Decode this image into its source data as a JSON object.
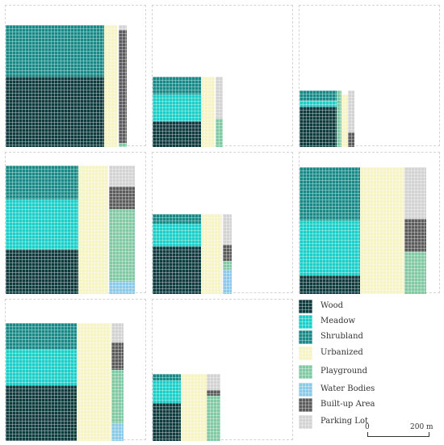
{
  "legend": {
    "items": [
      {
        "label": "Wood",
        "color": "#0e3b3e"
      },
      {
        "label": "Meadow",
        "color": "#19cfc7"
      },
      {
        "label": "Shrubland",
        "color": "#178a88"
      },
      {
        "label": "Urbanized",
        "color": "#f6f3c4"
      },
      {
        "label": "Playground",
        "color": "#80c9a3"
      },
      {
        "label": "Water Bodies",
        "color": "#8ac9e7"
      },
      {
        "label": "Built-up Area",
        "color": "#5c5c5c"
      },
      {
        "label": "Parking Lot",
        "color": "#d3d3d3"
      }
    ]
  },
  "scale": {
    "zero_label": "0",
    "end_label": "200 m"
  }
}
